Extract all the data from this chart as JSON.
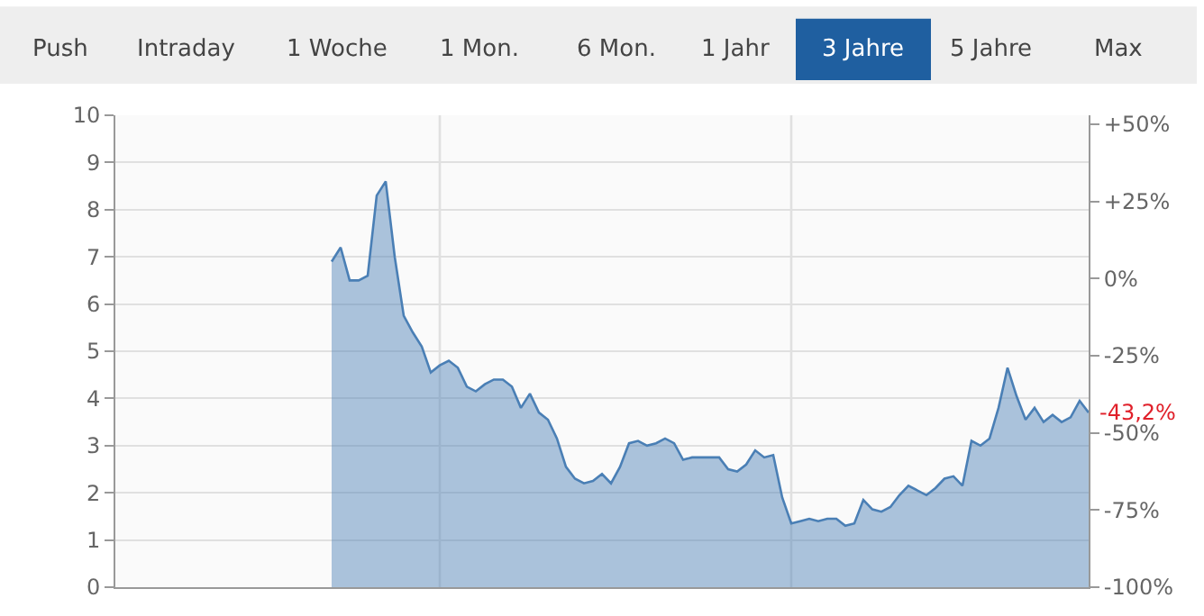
{
  "chart_data": {
    "type": "area",
    "categories": [
      null,
      null,
      null,
      null,
      null,
      null,
      null,
      null,
      null,
      null,
      null,
      null,
      null,
      null,
      null,
      null,
      null,
      null,
      null,
      null,
      null,
      null,
      null,
      null,
      null,
      null,
      null,
      null,
      null,
      null,
      null,
      null,
      null,
      null,
      null,
      null,
      null,
      null,
      null,
      null,
      null,
      null,
      null,
      null,
      null,
      null,
      null,
      null,
      null,
      null,
      null,
      null,
      null,
      null,
      null,
      null,
      null,
      null,
      null,
      null,
      null,
      null,
      null,
      null,
      null,
      null,
      null,
      null,
      null,
      null,
      null,
      null,
      null,
      null,
      null,
      null,
      null,
      null,
      null,
      null,
      null,
      null,
      null,
      null,
      null,
      null,
      null,
      null,
      null,
      null,
      null,
      null,
      null,
      null,
      null,
      null,
      null,
      null,
      null,
      null,
      null,
      null,
      null,
      null,
      null,
      null,
      null,
      null,
      null
    ],
    "series": [
      {
        "color": "#4a7fb5",
        "values": [
          null,
          null,
          null,
          null,
          null,
          null,
          null,
          null,
          null,
          null,
          null,
          null,
          null,
          null,
          null,
          null,
          null,
          null,
          null,
          null,
          null,
          null,
          null,
          null,
          6.9,
          7.2,
          6.5,
          6.5,
          6.6,
          8.3,
          8.6,
          7.0,
          5.75,
          5.4,
          5.1,
          4.55,
          4.7,
          4.8,
          4.65,
          4.25,
          4.15,
          4.3,
          4.4,
          4.4,
          4.25,
          3.8,
          4.1,
          3.7,
          3.55,
          3.15,
          2.55,
          2.3,
          2.2,
          2.25,
          2.4,
          2.2,
          2.55,
          3.05,
          3.1,
          3.0,
          3.05,
          3.15,
          3.05,
          2.7,
          2.75,
          2.75,
          2.75,
          2.75,
          2.5,
          2.45,
          2.6,
          2.9,
          2.75,
          2.8,
          1.9,
          1.35,
          1.4,
          1.45,
          1.4,
          1.45,
          1.45,
          1.3,
          1.35,
          1.85,
          1.65,
          1.6,
          1.7,
          1.95,
          2.15,
          2.05,
          1.95,
          2.1,
          2.3,
          2.35,
          2.15,
          3.1,
          3.0,
          3.15,
          3.8,
          4.65,
          4.05,
          3.55,
          3.8,
          3.5,
          3.65,
          3.5,
          3.6,
          3.95,
          3.7
        ]
      }
    ],
    "ylim": [
      0,
      10
    ],
    "yticks": [
      0,
      1,
      2,
      3,
      4,
      5,
      6,
      7,
      8,
      9,
      10
    ],
    "y2lim": [
      -100,
      52.9
    ],
    "y2ticks": [
      {
        "value": 50,
        "label": "+50%"
      },
      {
        "value": 25,
        "label": "+25%"
      },
      {
        "value": 0,
        "label": "0%"
      },
      {
        "value": -25,
        "label": "-25%"
      },
      {
        "value": -50,
        "label": "-50%"
      },
      {
        "value": -75,
        "label": "-75%"
      },
      {
        "value": -100,
        "label": "-100%"
      }
    ],
    "grid": "y",
    "annotations": [
      "Push",
      "Intraday",
      "1 Woche",
      "1 Mon.",
      "6 Mon.",
      "1 Jahr",
      "3 Jahre",
      "5 Jahre",
      "Max",
      "-43,2%"
    ]
  }
}
